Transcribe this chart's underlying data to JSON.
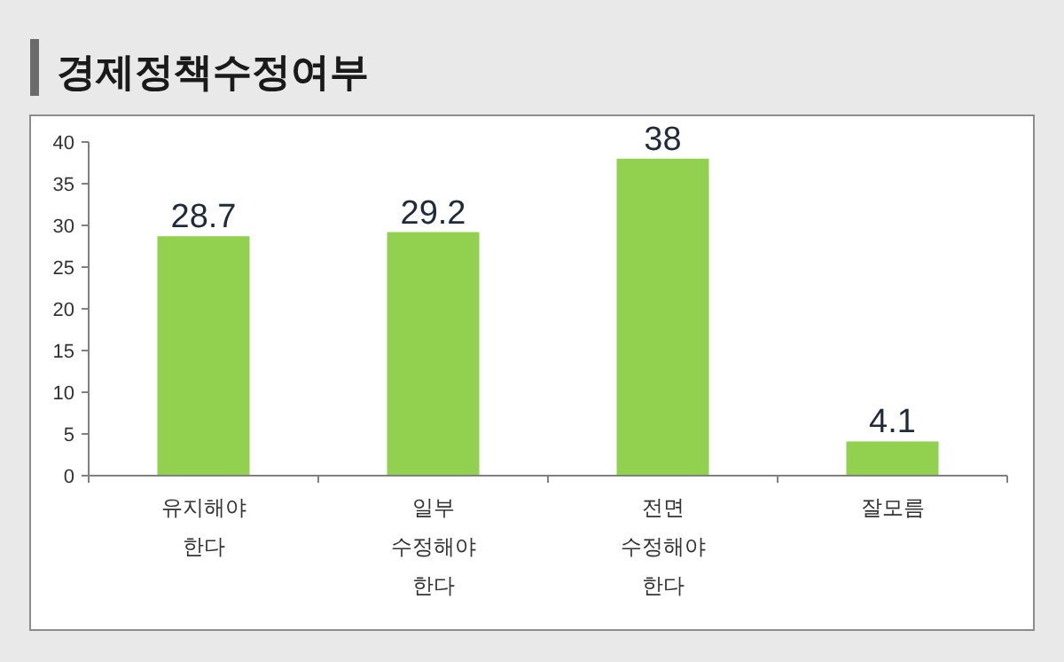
{
  "chart_data": {
    "type": "bar",
    "title": "경제정책수정여부",
    "categories": [
      "유지해야 한다",
      "일부 수정해야 한다",
      "전면 수정해야 한다",
      "잘모름"
    ],
    "values": [
      28.7,
      29.2,
      38,
      4.1
    ],
    "color": "#92d050",
    "ylim": [
      0,
      40
    ],
    "yticks": [
      0,
      5,
      10,
      15,
      20,
      25,
      30,
      35,
      40
    ],
    "data_labels": true,
    "grid": false
  }
}
